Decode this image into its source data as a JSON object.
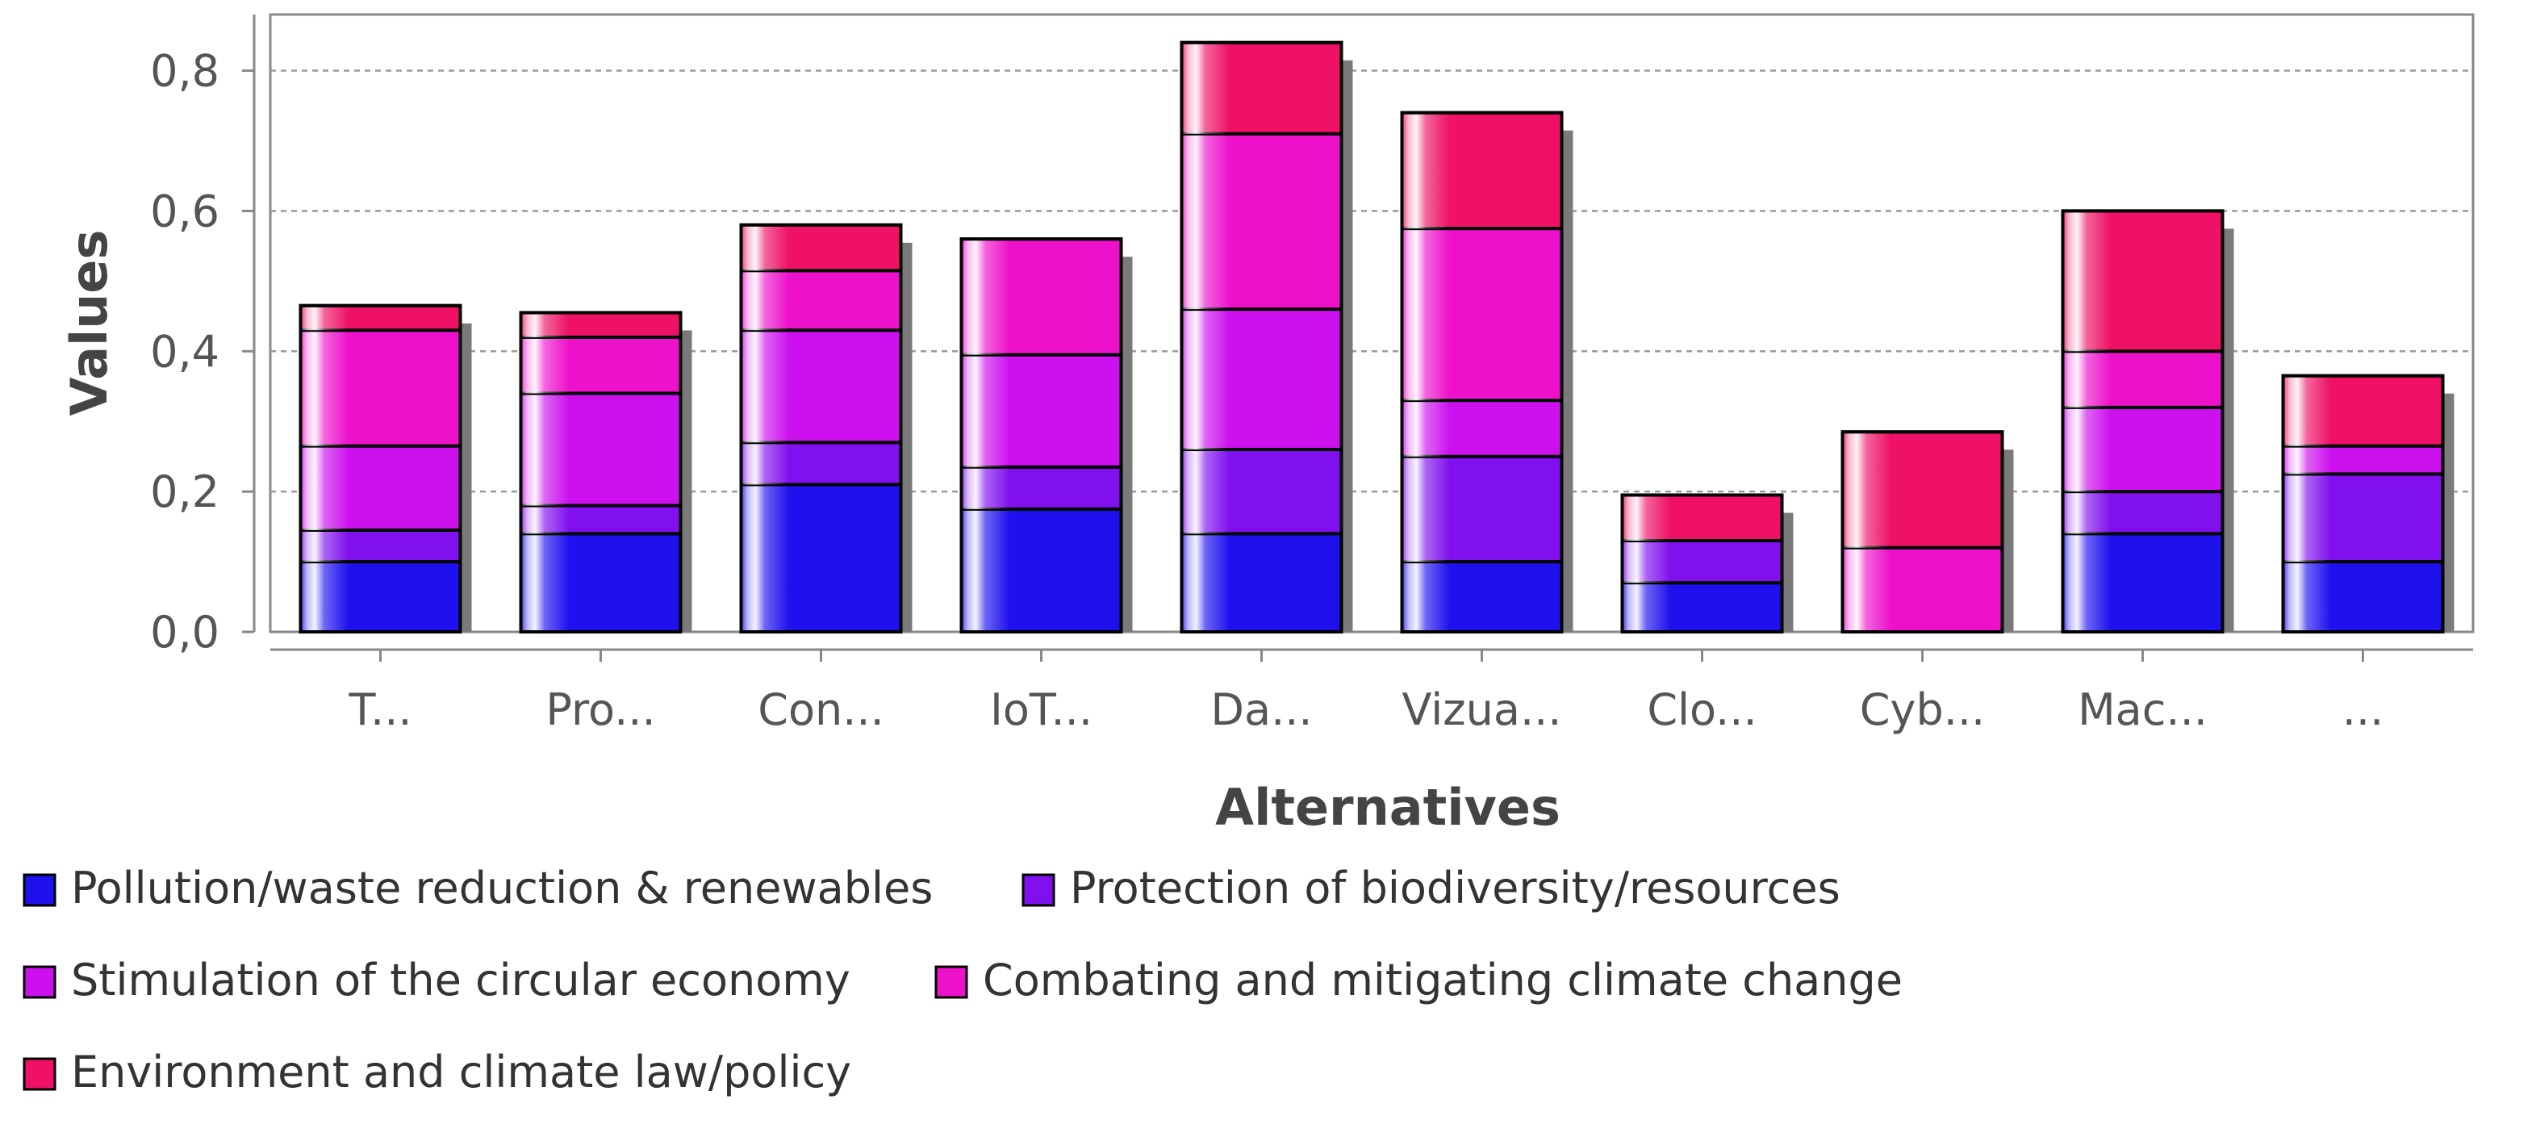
{
  "chart_data": {
    "type": "bar",
    "stacked": true,
    "xlabel": "Alternatives",
    "ylabel": "Values",
    "ylim": [
      0,
      0.88
    ],
    "yticks": [
      0.0,
      0.2,
      0.4,
      0.6,
      0.8
    ],
    "ytick_labels": [
      "0,0",
      "0,2",
      "0,4",
      "0,6",
      "0,8"
    ],
    "grid": true,
    "legend_position": "bottom",
    "categories": [
      "T...",
      "Pro...",
      "Con...",
      "IoT...",
      "Da...",
      "Vizua...",
      "Clo...",
      "Cyb...",
      "Mac...",
      "..."
    ],
    "series": [
      {
        "name": "Pollution/waste reduction & renewables",
        "color": "#1f11ee",
        "values": [
          0.1,
          0.14,
          0.21,
          0.175,
          0.14,
          0.1,
          0.07,
          0.0,
          0.14,
          0.1
        ]
      },
      {
        "name": "Protection of biodiversity/resources",
        "color": "#8011ee",
        "values": [
          0.045,
          0.04,
          0.06,
          0.06,
          0.12,
          0.15,
          0.06,
          0.0,
          0.06,
          0.125
        ]
      },
      {
        "name": "Stimulation of the circular economy",
        "color": "#cc11ee",
        "values": [
          0.12,
          0.16,
          0.16,
          0.16,
          0.2,
          0.08,
          0.0,
          0.0,
          0.12,
          0.04
        ]
      },
      {
        "name": "Combating and mitigating climate change",
        "color": "#ee11cc",
        "values": [
          0.165,
          0.08,
          0.085,
          0.165,
          0.25,
          0.245,
          0.0,
          0.12,
          0.08,
          0.0
        ]
      },
      {
        "name": "Environment and climate law/policy",
        "color": "#ee1166",
        "values": [
          0.035,
          0.035,
          0.065,
          0.0,
          0.13,
          0.165,
          0.065,
          0.165,
          0.2,
          0.1
        ]
      }
    ]
  }
}
